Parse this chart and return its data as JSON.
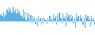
{
  "values": [
    1.8,
    2.2,
    1.5,
    2.8,
    1.2,
    2.0,
    1.8,
    3.5,
    2.8,
    4.2,
    3.0,
    3.8,
    2.5,
    4.5,
    3.2,
    2.8,
    3.5,
    2.2,
    3.8,
    2.5,
    3.0,
    2.0,
    1.5,
    0.8,
    3.5,
    1.2,
    2.8,
    0.5,
    2.5,
    1.0,
    2.2,
    0.2,
    1.8,
    -0.5,
    1.5,
    0.5,
    1.2,
    -0.8,
    0.8,
    -1.5,
    1.5,
    0.2,
    1.0,
    -1.0,
    0.8,
    -0.5,
    1.2,
    0.5,
    0.5,
    -0.8,
    0.8,
    0.2,
    1.5,
    0.5,
    0.8,
    -0.5,
    2.0,
    0.8,
    1.5,
    -1.0,
    1.8,
    0.5,
    2.5,
    1.0,
    1.2,
    -0.5,
    2.2,
    0.8,
    1.5,
    -1.5,
    2.5,
    1.2,
    1.8,
    0.5,
    2.0,
    0.8,
    1.5,
    -0.5,
    1.0,
    -1.8,
    2.2,
    1.0,
    1.5,
    0.2,
    1.8,
    0.8,
    1.2,
    -1.0,
    0.8,
    -2.0,
    2.0,
    0.8,
    1.5,
    0.5,
    0.8,
    -1.5,
    1.5,
    0.5,
    1.0,
    -1.0
  ],
  "bar_color": "#5ab0e8",
  "background_color": "#ffffff",
  "ylim_min": -4.0,
  "ylim_max": 6.5
}
